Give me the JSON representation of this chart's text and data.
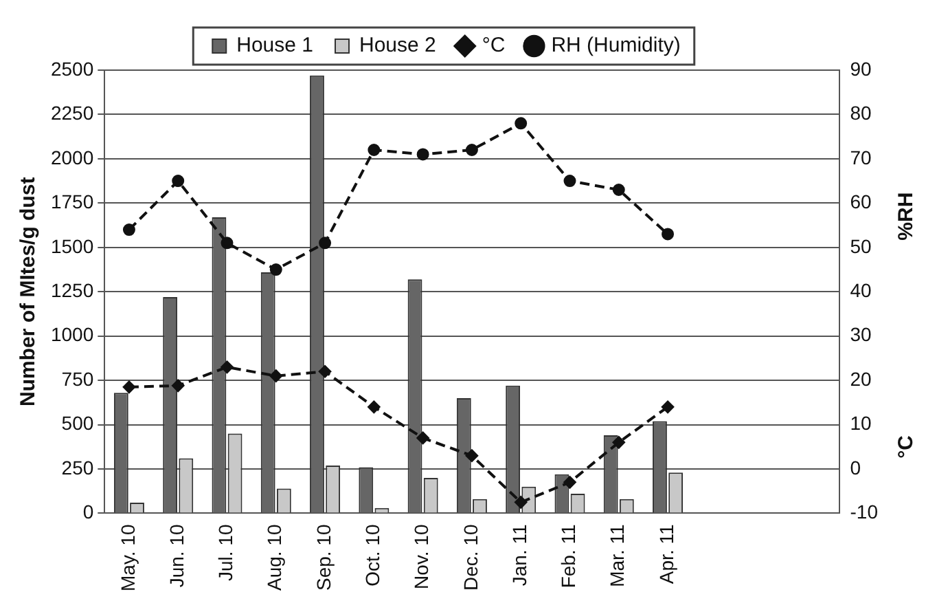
{
  "chart_data": {
    "type": "bar",
    "ylabel": "Number of MItes/g dust",
    "y2label": "%RH",
    "annotations": [
      "°C"
    ],
    "categories": [
      "May. 10",
      "Jun. 10",
      "Jul. 10",
      "Aug. 10",
      "Sep. 10",
      "Oct. 10",
      "Nov. 10",
      "Dec. 10",
      "Jan. 11",
      "Feb. 11",
      "Mar. 11",
      "Apr. 11",
      null,
      null,
      null
    ],
    "series": [
      {
        "name": "House 1",
        "color": "#666666",
        "values": [
          680,
          1220,
          1670,
          1360,
          2470,
          260,
          1320,
          650,
          720,
          220,
          440,
          520,
          null,
          null,
          null
        ]
      },
      {
        "name": "House 2",
        "color": "#c8c8c8",
        "values": [
          60,
          310,
          450,
          140,
          270,
          30,
          200,
          80,
          150,
          110,
          80,
          230,
          null,
          null,
          null
        ]
      },
      {
        "name": "°C",
        "type": "line",
        "axis": "y2",
        "color": "#111111",
        "marker": "diamond",
        "line_style": "dashed",
        "values": [
          18.5,
          18.8,
          23,
          21,
          22,
          14,
          7,
          3,
          -7.5,
          -3,
          6,
          14,
          null,
          null,
          null
        ]
      },
      {
        "name": "RH (Humidity)",
        "type": "line",
        "axis": "y2",
        "color": "#111111",
        "marker": "circle",
        "line_style": "dashed",
        "values": [
          54,
          65,
          51,
          45,
          51,
          72,
          71,
          72,
          78,
          65,
          63,
          53,
          null,
          null,
          null
        ]
      }
    ],
    "ylim": [
      0,
      2500
    ],
    "yticks": [
      0,
      250,
      500,
      750,
      1000,
      1250,
      1500,
      1750,
      2000,
      2250,
      2500
    ],
    "y2lim": [
      -10,
      90
    ],
    "y2ticks": [
      -10,
      0,
      10,
      20,
      30,
      40,
      50,
      60,
      70,
      80,
      90
    ],
    "grid": "y",
    "legend": "top"
  }
}
